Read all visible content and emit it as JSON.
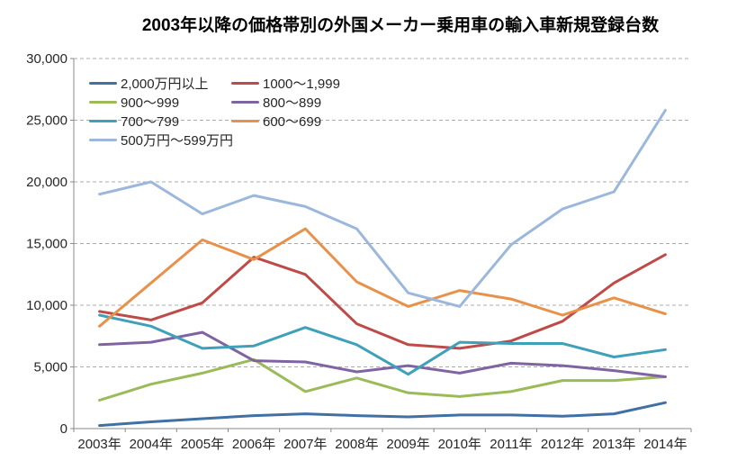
{
  "title": "2003年以降の価格帯別の外国メーカー乗用車の輸入車新規登録台数",
  "chart_data": {
    "type": "line",
    "categories": [
      "2003年",
      "2004年",
      "2005年",
      "2006年",
      "2007年",
      "2008年",
      "2009年",
      "2010年",
      "2011年",
      "2012年",
      "2013年",
      "2014年"
    ],
    "series": [
      {
        "name": "2,000万円以上",
        "color": "#4170A4",
        "values": [
          250,
          550,
          800,
          1050,
          1200,
          1050,
          950,
          1100,
          1100,
          1000,
          1200,
          2100
        ]
      },
      {
        "name": "1000～1,999",
        "color": "#BE4B48",
        "values": [
          9500,
          8800,
          10200,
          13900,
          12500,
          8500,
          6800,
          6500,
          7100,
          8700,
          11800,
          14100
        ]
      },
      {
        "name": "900～999",
        "color": "#9BBB59",
        "values": [
          2300,
          3600,
          4500,
          5600,
          3000,
          4100,
          2900,
          2600,
          3000,
          3900,
          3900,
          4200
        ]
      },
      {
        "name": "800～899",
        "color": "#8064A2",
        "values": [
          6800,
          7000,
          7800,
          5500,
          5400,
          4600,
          5100,
          4500,
          5300,
          5100,
          4700,
          4200
        ]
      },
      {
        "name": "700～799",
        "color": "#3FA0BA",
        "values": [
          9200,
          8300,
          6500,
          6700,
          8200,
          6800,
          4400,
          7000,
          6900,
          6900,
          5800,
          6400
        ]
      },
      {
        "name": "600～699",
        "color": "#E8914A",
        "values": [
          8300,
          11800,
          15300,
          13700,
          16200,
          11900,
          9900,
          11200,
          10500,
          9200,
          10600,
          9300
        ]
      },
      {
        "name": "500万円～599万円",
        "color": "#9CB7DC",
        "values": [
          19000,
          20000,
          17400,
          18900,
          18000,
          16200,
          11000,
          9900,
          14900,
          17800,
          19200,
          25800
        ]
      }
    ],
    "ylim": [
      0,
      30000
    ],
    "ytick_step": 5000,
    "ytick_labels": [
      "0",
      "5,000",
      "10,000",
      "15,000",
      "20,000",
      "25,000",
      "30,000"
    ],
    "xlabel": "",
    "ylabel": "",
    "grid": true,
    "legend_position": "inside-top-left",
    "colors": {
      "gridline": "#ABABAB",
      "axis": "#898989",
      "text": "#262626",
      "title_text": "#000000",
      "background": "#FFFFFF"
    }
  }
}
